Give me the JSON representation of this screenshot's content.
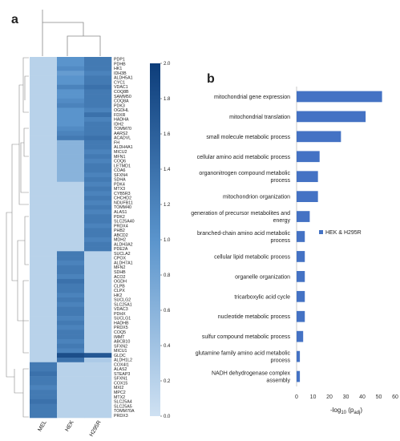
{
  "panels": {
    "a": "a",
    "b": "b"
  },
  "chart_data": [
    {
      "type": "heatmap",
      "columns": [
        "MEL",
        "HEK",
        "H295R"
      ],
      "rows": [
        "PDP1",
        "PDHB",
        "HK1",
        "IDH3B",
        "ALDH5A1",
        "CYC1",
        "VDAC1",
        "COQ8B",
        "SAMM50",
        "COQ8A",
        "PDK3",
        "OGDHL",
        "FDXR",
        "HADHA",
        "IDH2",
        "TOMM70",
        "AARS2",
        "ACADVL",
        "FH",
        "ALDH4A1",
        "MICU2",
        "MFN1",
        "COQ6",
        "LETMD1",
        "COA6",
        "SFXN4",
        "SDHA",
        "PDK4",
        "MTX3",
        "CYB5R3",
        "CHCHD2",
        "NDUFB11",
        "TOMM40",
        "ALAS1",
        "PDK2",
        "SLC25A40",
        "PRDX4",
        "PHB2",
        "ABCD2",
        "MDH2",
        "ALDH3A2",
        "PDE2A",
        "SUCLA2",
        "CPOX",
        "ALDH7A1",
        "MFN2",
        "SDHB",
        "ACO2",
        "OGDH",
        "CLPB",
        "CLPX",
        "HK2",
        "SUCLG2",
        "SLC25A1",
        "VDAC3",
        "PDHX",
        "SUCLG1",
        "HADHB",
        "PRDX5",
        "COQ5",
        "IMMT",
        "ABCB10",
        "SFXN2",
        "MICU1",
        "GLDC",
        "ALDH1L2",
        "COX4I1",
        "ALAS2",
        "STEAP3",
        "SFXN1",
        "COX15",
        "MXI2",
        "MPC2",
        "MTX2",
        "SLC25A4",
        "SLC25A5",
        "TOMM70A",
        "PRDX3"
      ],
      "values": [
        [
          0.2,
          1.0,
          1.3
        ],
        [
          0.2,
          1.0,
          1.3
        ],
        [
          0.2,
          1.1,
          1.3
        ],
        [
          0.2,
          0.9,
          1.2
        ],
        [
          0.2,
          1.0,
          1.3
        ],
        [
          0.2,
          1.0,
          1.3
        ],
        [
          0.2,
          1.2,
          1.4
        ],
        [
          0.2,
          1.0,
          1.3
        ],
        [
          0.2,
          1.0,
          1.3
        ],
        [
          0.2,
          1.1,
          1.3
        ],
        [
          0.2,
          1.2,
          1.3
        ],
        [
          0.2,
          1.0,
          1.2
        ],
        [
          0.2,
          1.0,
          1.4
        ],
        [
          0.2,
          1.0,
          1.2
        ],
        [
          0.2,
          1.0,
          1.3
        ],
        [
          0.2,
          1.1,
          1.3
        ],
        [
          0.2,
          1.2,
          1.3
        ],
        [
          0.2,
          1.3,
          1.4
        ],
        [
          0.2,
          0.6,
          1.3
        ],
        [
          0.2,
          0.6,
          1.3
        ],
        [
          0.2,
          0.6,
          1.2
        ],
        [
          0.2,
          0.6,
          1.3
        ],
        [
          0.2,
          0.6,
          1.2
        ],
        [
          0.2,
          0.6,
          1.3
        ],
        [
          0.2,
          0.6,
          1.3
        ],
        [
          0.2,
          0.6,
          1.2
        ],
        [
          0.2,
          0.6,
          1.3
        ],
        [
          0.2,
          0.2,
          1.2
        ],
        [
          0.2,
          0.2,
          1.3
        ],
        [
          0.2,
          0.2,
          1.2
        ],
        [
          0.2,
          0.2,
          1.3
        ],
        [
          0.2,
          0.2,
          1.2
        ],
        [
          0.2,
          0.2,
          1.3
        ],
        [
          0.2,
          0.2,
          1.2
        ],
        [
          0.2,
          0.2,
          1.3
        ],
        [
          0.2,
          0.2,
          1.3
        ],
        [
          0.2,
          0.2,
          1.2
        ],
        [
          0.2,
          0.2,
          1.3
        ],
        [
          0.2,
          0.2,
          1.3
        ],
        [
          0.2,
          0.2,
          1.2
        ],
        [
          0.2,
          0.2,
          1.3
        ],
        [
          0.2,
          0.2,
          1.3
        ],
        [
          0.2,
          1.3,
          0.2
        ],
        [
          0.2,
          1.3,
          0.2
        ],
        [
          0.2,
          1.2,
          0.2
        ],
        [
          0.2,
          1.3,
          0.2
        ],
        [
          0.2,
          1.3,
          0.2
        ],
        [
          0.2,
          1.2,
          0.2
        ],
        [
          0.2,
          1.4,
          0.2
        ],
        [
          0.2,
          1.3,
          0.2
        ],
        [
          0.2,
          1.3,
          0.2
        ],
        [
          0.2,
          1.2,
          0.2
        ],
        [
          0.2,
          1.3,
          0.2
        ],
        [
          0.2,
          1.2,
          0.2
        ],
        [
          0.2,
          1.3,
          0.2
        ],
        [
          0.2,
          1.3,
          0.2
        ],
        [
          0.2,
          1.2,
          0.2
        ],
        [
          0.2,
          1.3,
          0.2
        ],
        [
          0.2,
          1.2,
          0.2
        ],
        [
          0.2,
          1.3,
          0.2
        ],
        [
          0.2,
          1.3,
          0.2
        ],
        [
          0.2,
          1.2,
          0.2
        ],
        [
          0.2,
          1.3,
          0.2
        ],
        [
          0.2,
          1.2,
          0.2
        ],
        [
          0.2,
          1.8,
          1.7
        ],
        [
          0.2,
          1.4,
          0.3
        ],
        [
          1.3,
          0.2,
          0.2
        ],
        [
          1.3,
          0.2,
          0.2
        ],
        [
          1.4,
          0.2,
          0.2
        ],
        [
          1.3,
          0.2,
          0.2
        ],
        [
          1.3,
          0.2,
          0.2
        ],
        [
          1.2,
          0.2,
          0.2
        ],
        [
          1.3,
          0.2,
          0.2
        ],
        [
          1.3,
          0.2,
          0.2
        ],
        [
          1.4,
          0.2,
          0.2
        ],
        [
          1.3,
          0.2,
          0.2
        ],
        [
          1.3,
          0.2,
          0.2
        ],
        [
          1.3,
          0.2,
          0.2
        ]
      ],
      "colorbar": {
        "min": 0,
        "max": 2.0,
        "ticks": [
          "0.0",
          "0.2",
          "0.4",
          "0.6",
          "0.8",
          "1.0",
          "1.2",
          "1.4",
          "1.6",
          "1.8",
          "2.0"
        ],
        "low_color": "#cfe1f2",
        "high_color": "#0d3d7a"
      }
    },
    {
      "type": "bar",
      "orientation": "horizontal",
      "categories": [
        [
          "mitochondrial gene expression"
        ],
        [
          "mitochondrial translation"
        ],
        [
          "small molecule metabolic process"
        ],
        [
          "cellular amino acid metabolic process"
        ],
        [
          "organonitrogen compound metabolic",
          "process"
        ],
        [
          "mitochondrion organization"
        ],
        [
          "generation of precursor metabolites and",
          "energy"
        ],
        [
          "branched-chain amino acid metabolic",
          "process"
        ],
        [
          "cellular lipid metabolic process"
        ],
        [
          "organelle organization"
        ],
        [
          "tricarboxylic acid cycle"
        ],
        [
          "nucleotide metabolic process"
        ],
        [
          "sulfur compound metabolic process"
        ],
        [
          "glutamine family amino acid metabolic",
          "process"
        ],
        [
          "NADH dehydrogenase complex",
          "assembly"
        ]
      ],
      "series": [
        {
          "name": "HEK & H295R",
          "values": [
            52,
            42,
            27,
            14,
            13,
            13,
            8,
            5,
            5,
            5,
            5,
            5,
            4,
            2,
            2
          ],
          "color": "#4472c4"
        }
      ],
      "xlim": [
        0,
        60
      ],
      "xticks": [
        "0",
        "10",
        "20",
        "30",
        "40",
        "50",
        "60"
      ],
      "xlabel": "-log10 (padj)",
      "xlabel_parts": {
        "main": "-log",
        "sub1": "10",
        "mid": " (p",
        "sub2": "adj",
        "end": ")"
      },
      "legend_position": "right",
      "grid": false
    }
  ]
}
